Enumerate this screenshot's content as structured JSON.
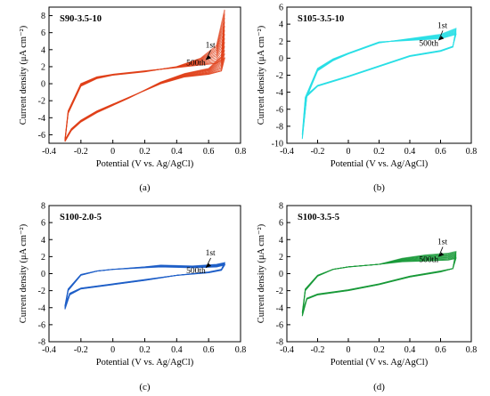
{
  "chart_data": [
    {
      "id": "a",
      "type": "line",
      "label": "(a)",
      "sample": "S90-3.5-10",
      "xlabel": "Potential (V vs. Ag/AgCl)",
      "ylabel": "Current density (μA cm⁻²)",
      "xlim": [
        -0.4,
        0.8
      ],
      "ylim": [
        -7,
        9
      ],
      "xticks": [
        -0.4,
        -0.2,
        0,
        0.2,
        0.4,
        0.6,
        0.8
      ],
      "yticks": [
        -6,
        -4,
        -2,
        0,
        2,
        4,
        6,
        8
      ],
      "color": "#e0401a",
      "annotations": {
        "first": "1st",
        "last": "500th"
      },
      "cycles": [
        {
          "name": "1st",
          "upper": [
            [
              -0.3,
              -6.8
            ],
            [
              -0.28,
              -3.5
            ],
            [
              -0.2,
              -0.3
            ],
            [
              -0.1,
              0.6
            ],
            [
              0,
              1
            ],
            [
              0.2,
              1.4
            ],
            [
              0.4,
              2
            ],
            [
              0.55,
              3
            ],
            [
              0.65,
              4.5
            ],
            [
              0.7,
              8.7
            ]
          ],
          "lower": [
            [
              0.7,
              8.7
            ],
            [
              0.68,
              3.2
            ],
            [
              0.6,
              1.8
            ],
            [
              0.45,
              1.2
            ],
            [
              0.3,
              0.2
            ],
            [
              0.1,
              -1.7
            ],
            [
              -0.1,
              -3.4
            ],
            [
              -0.2,
              -4.5
            ],
            [
              -0.26,
              -5.5
            ],
            [
              -0.3,
              -6.8
            ]
          ]
        },
        {
          "name": "500th",
          "upper": [
            [
              -0.3,
              -6.6
            ],
            [
              -0.28,
              -3.2
            ],
            [
              -0.2,
              0
            ],
            [
              -0.1,
              0.8
            ],
            [
              0,
              1.1
            ],
            [
              0.2,
              1.5
            ],
            [
              0.4,
              1.9
            ],
            [
              0.55,
              2.2
            ],
            [
              0.65,
              2.4
            ],
            [
              0.7,
              3
            ]
          ],
          "lower": [
            [
              0.7,
              3
            ],
            [
              0.68,
              1.5
            ],
            [
              0.6,
              1.1
            ],
            [
              0.45,
              0.8
            ],
            [
              0.3,
              0
            ],
            [
              0.1,
              -1.6
            ],
            [
              -0.1,
              -3.2
            ],
            [
              -0.2,
              -4.3
            ],
            [
              -0.26,
              -5.3
            ],
            [
              -0.3,
              -6.6
            ]
          ]
        }
      ]
    },
    {
      "id": "b",
      "type": "line",
      "label": "(b)",
      "sample": "S105-3.5-10",
      "xlabel": "Potential (V vs. Ag/AgCl)",
      "ylabel": "Current density (μA cm⁻²)",
      "xlim": [
        -0.4,
        0.8
      ],
      "ylim": [
        -10,
        6
      ],
      "xticks": [
        -0.4,
        -0.2,
        0,
        0.2,
        0.4,
        0.6,
        0.8
      ],
      "yticks": [
        -10,
        -8,
        -6,
        -4,
        -2,
        0,
        2,
        4,
        6
      ],
      "color": "#2adfe6",
      "annotations": {
        "first": "1st",
        "last": "500th"
      },
      "cycles": [
        {
          "name": "1st",
          "upper": [
            [
              -0.3,
              -9.5
            ],
            [
              -0.28,
              -5
            ],
            [
              -0.2,
              -1.5
            ],
            [
              -0.1,
              -0.3
            ],
            [
              0,
              0.5
            ],
            [
              0.2,
              1.8
            ],
            [
              0.4,
              2.3
            ],
            [
              0.6,
              2.8
            ],
            [
              0.7,
              3.5
            ]
          ],
          "lower": [
            [
              0.7,
              3.5
            ],
            [
              0.68,
              1.3
            ],
            [
              0.6,
              0.8
            ],
            [
              0.4,
              0.2
            ],
            [
              0.2,
              -1
            ],
            [
              0,
              -2.2
            ],
            [
              -0.2,
              -3.3
            ],
            [
              -0.27,
              -4.5
            ],
            [
              -0.3,
              -9.5
            ]
          ]
        },
        {
          "name": "500th",
          "upper": [
            [
              -0.3,
              -9
            ],
            [
              -0.28,
              -4.6
            ],
            [
              -0.2,
              -1.2
            ],
            [
              -0.1,
              -0.1
            ],
            [
              0,
              0.6
            ],
            [
              0.2,
              1.9
            ],
            [
              0.4,
              2.1
            ],
            [
              0.6,
              2.3
            ],
            [
              0.7,
              2.8
            ]
          ],
          "lower": [
            [
              0.7,
              2.8
            ],
            [
              0.68,
              1.4
            ],
            [
              0.6,
              0.9
            ],
            [
              0.4,
              0.3
            ],
            [
              0.2,
              -0.9
            ],
            [
              0,
              -2.1
            ],
            [
              -0.2,
              -3.2
            ],
            [
              -0.27,
              -4.3
            ],
            [
              -0.3,
              -9
            ]
          ]
        }
      ]
    },
    {
      "id": "c",
      "type": "line",
      "label": "(c)",
      "sample": "S100-2.0-5",
      "xlabel": "Potential (V vs. Ag/AgCl)",
      "ylabel": "Current density (μA cm⁻²)",
      "xlim": [
        -0.4,
        0.8
      ],
      "ylim": [
        -8,
        8
      ],
      "xticks": [
        -0.4,
        -0.2,
        0,
        0.2,
        0.4,
        0.6,
        0.8
      ],
      "yticks": [
        -8,
        -6,
        -4,
        -2,
        0,
        2,
        4,
        6,
        8
      ],
      "color": "#1f5fc8",
      "annotations": {
        "first": "1st",
        "last": "500th"
      },
      "cycles": [
        {
          "name": "1st",
          "upper": [
            [
              -0.3,
              -4.2
            ],
            [
              -0.28,
              -2
            ],
            [
              -0.2,
              -0.2
            ],
            [
              -0.1,
              0.3
            ],
            [
              0,
              0.5
            ],
            [
              0.2,
              0.8
            ],
            [
              0.3,
              1
            ],
            [
              0.5,
              0.9
            ],
            [
              0.65,
              1.1
            ],
            [
              0.7,
              1.3
            ]
          ],
          "lower": [
            [
              0.7,
              1.3
            ],
            [
              0.68,
              0.5
            ],
            [
              0.6,
              0.2
            ],
            [
              0.4,
              -0.2
            ],
            [
              0.2,
              -0.8
            ],
            [
              0,
              -1.3
            ],
            [
              -0.2,
              -1.8
            ],
            [
              -0.27,
              -2.5
            ],
            [
              -0.3,
              -4.2
            ]
          ]
        },
        {
          "name": "500th",
          "upper": [
            [
              -0.3,
              -3.8
            ],
            [
              -0.28,
              -1.8
            ],
            [
              -0.2,
              -0.1
            ],
            [
              -0.1,
              0.3
            ],
            [
              0,
              0.5
            ],
            [
              0.2,
              0.7
            ],
            [
              0.3,
              0.8
            ],
            [
              0.5,
              0.7
            ],
            [
              0.65,
              0.8
            ],
            [
              0.7,
              1
            ]
          ],
          "lower": [
            [
              0.7,
              1
            ],
            [
              0.68,
              0.4
            ],
            [
              0.6,
              0.1
            ],
            [
              0.4,
              -0.2
            ],
            [
              0.2,
              -0.7
            ],
            [
              0,
              -1.2
            ],
            [
              -0.2,
              -1.7
            ],
            [
              -0.27,
              -2.3
            ],
            [
              -0.3,
              -3.8
            ]
          ]
        }
      ]
    },
    {
      "id": "d",
      "type": "line",
      "label": "(d)",
      "sample": "S100-3.5-5",
      "xlabel": "Potential (V vs. Ag/AgCl)",
      "ylabel": "Current density (μA cm⁻²)",
      "xlim": [
        -0.4,
        0.8
      ],
      "ylim": [
        -8,
        8
      ],
      "xticks": [
        -0.4,
        -0.2,
        0,
        0.2,
        0.4,
        0.6,
        0.8
      ],
      "yticks": [
        -8,
        -6,
        -4,
        -2,
        0,
        2,
        4,
        6,
        8
      ],
      "color": "#1a9a3a",
      "annotations": {
        "first": "1st",
        "last": "500th"
      },
      "cycles": [
        {
          "name": "1st",
          "upper": [
            [
              -0.3,
              -5
            ],
            [
              -0.28,
              -2
            ],
            [
              -0.2,
              -0.3
            ],
            [
              -0.1,
              0.5
            ],
            [
              0,
              0.8
            ],
            [
              0.2,
              1.1
            ],
            [
              0.35,
              1.8
            ],
            [
              0.5,
              2.2
            ],
            [
              0.65,
              2.4
            ],
            [
              0.7,
              2.6
            ]
          ],
          "lower": [
            [
              0.7,
              2.6
            ],
            [
              0.68,
              0.6
            ],
            [
              0.6,
              0.2
            ],
            [
              0.4,
              -0.4
            ],
            [
              0.2,
              -1.3
            ],
            [
              0,
              -2
            ],
            [
              -0.2,
              -2.5
            ],
            [
              -0.27,
              -3
            ],
            [
              -0.3,
              -5
            ]
          ]
        },
        {
          "name": "500th",
          "upper": [
            [
              -0.3,
              -4.6
            ],
            [
              -0.28,
              -1.8
            ],
            [
              -0.2,
              -0.2
            ],
            [
              -0.1,
              0.5
            ],
            [
              0,
              0.8
            ],
            [
              0.2,
              1.1
            ],
            [
              0.35,
              1.4
            ],
            [
              0.5,
              1.5
            ],
            [
              0.65,
              1.6
            ],
            [
              0.7,
              1.8
            ]
          ],
          "lower": [
            [
              0.7,
              1.8
            ],
            [
              0.68,
              0.6
            ],
            [
              0.6,
              0.3
            ],
            [
              0.4,
              -0.3
            ],
            [
              0.2,
              -1.2
            ],
            [
              0,
              -1.9
            ],
            [
              -0.2,
              -2.4
            ],
            [
              -0.27,
              -2.9
            ],
            [
              -0.3,
              -4.6
            ]
          ]
        }
      ]
    }
  ]
}
